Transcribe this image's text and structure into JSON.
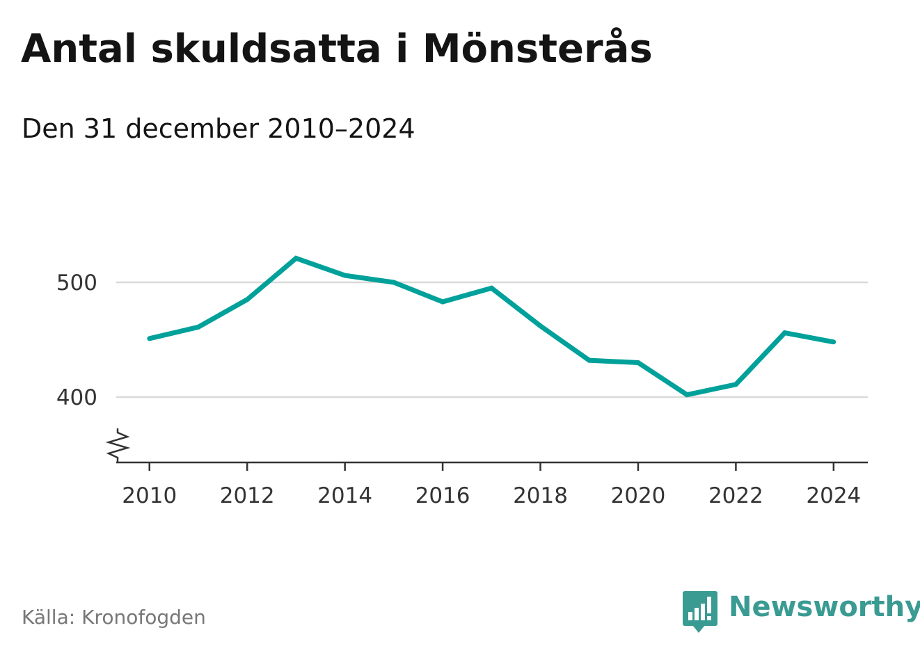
{
  "header": {
    "title": "Antal skuldsatta i Mönsterås",
    "subtitle": "Den 31 december 2010–2024"
  },
  "footer": {
    "source": "Källa: Kronofogden",
    "brand": "Newsworthy",
    "brand_icon": "bar-chart-speech-bubble-icon"
  },
  "colors": {
    "line": "#00a19a",
    "grid": "#d9d9d9",
    "axis": "#333333",
    "tick_text": "#333333",
    "brand": "#3a9b92"
  },
  "chart_data": {
    "type": "line",
    "title": "Antal skuldsatta i Mönsterås",
    "subtitle": "Den 31 december 2010–2024",
    "xlabel": "",
    "ylabel": "",
    "x": [
      2010,
      2011,
      2012,
      2013,
      2014,
      2015,
      2016,
      2017,
      2018,
      2019,
      2020,
      2021,
      2022,
      2023,
      2024
    ],
    "series": [
      {
        "values": [
          451,
          461,
          485,
          521,
          506,
          500,
          483,
          495,
          462,
          432,
          430,
          402,
          411,
          456,
          448
        ]
      }
    ],
    "xticks": [
      "2010",
      "2012",
      "2014",
      "2016",
      "2018",
      "2020",
      "2022",
      "2024"
    ],
    "yticks": [
      "400",
      "500"
    ],
    "ylim": [
      343,
      540
    ],
    "xlim": [
      2009.32,
      2024.7
    ],
    "axis_break": true,
    "grid": "horizontal",
    "legend": "none"
  }
}
